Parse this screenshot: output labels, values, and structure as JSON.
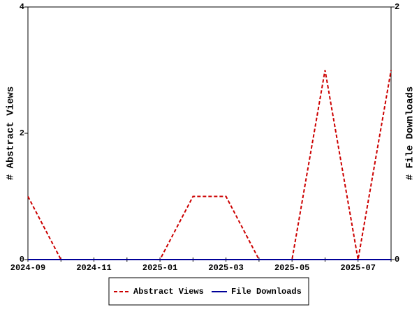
{
  "chart_data": {
    "type": "line",
    "categories": [
      "2024-09",
      null,
      "2024-11",
      null,
      "2025-01",
      null,
      "2025-03",
      null,
      "2025-05",
      null,
      "2025-07",
      null
    ],
    "series": [
      {
        "name": "Abstract Views",
        "color": "#cc0000",
        "dashed": true,
        "axis": "y",
        "values": [
          1,
          0,
          0,
          0,
          0,
          1,
          1,
          0,
          0,
          3,
          0,
          3
        ]
      },
      {
        "name": "File Downloads",
        "color": "#000099",
        "dashed": false,
        "axis": "y2",
        "values": [
          0,
          0,
          0,
          0,
          0,
          0,
          0,
          0,
          0,
          0,
          0,
          0
        ]
      }
    ],
    "ylabel": "# Abstract Views",
    "y2label": "# File Downloads",
    "ylim": [
      0,
      4
    ],
    "yticks": [
      0,
      2,
      4
    ],
    "y2lim": [
      0,
      2
    ],
    "y2ticks": [
      0,
      2
    ],
    "legend": "bottom"
  }
}
